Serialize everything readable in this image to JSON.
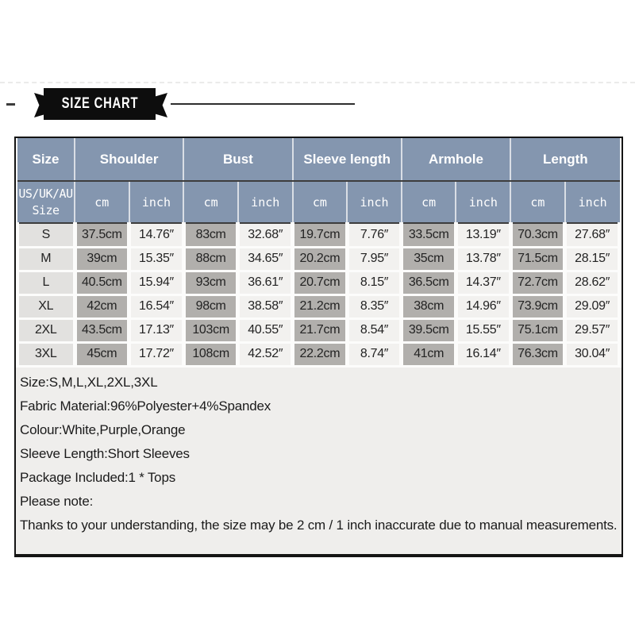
{
  "banner": {
    "title": "SIZE CHART"
  },
  "table": {
    "group_headers": [
      "Size",
      "Shoulder",
      "Bust",
      "Sleeve length",
      "Armhole",
      "Length"
    ],
    "subheader": {
      "size_line1": "US/UK/AU",
      "size_line2": "Size",
      "cm": "cm",
      "inch": "inch"
    },
    "rows": [
      {
        "size": "S",
        "values": [
          "37.5cm",
          "14.76″",
          "83cm",
          "32.68″",
          "19.7cm",
          "7.76″",
          "33.5cm",
          "13.19″",
          "70.3cm",
          "27.68″"
        ]
      },
      {
        "size": "M",
        "values": [
          "39cm",
          "15.35″",
          "88cm",
          "34.65″",
          "20.2cm",
          "7.95″",
          "35cm",
          "13.78″",
          "71.5cm",
          "28.15″"
        ]
      },
      {
        "size": "L",
        "values": [
          "40.5cm",
          "15.94″",
          "93cm",
          "36.61″",
          "20.7cm",
          "8.15″",
          "36.5cm",
          "14.37″",
          "72.7cm",
          "28.62″"
        ]
      },
      {
        "size": "XL",
        "values": [
          "42cm",
          "16.54″",
          "98cm",
          "38.58″",
          "21.2cm",
          "8.35″",
          "38cm",
          "14.96″",
          "73.9cm",
          "29.09″"
        ]
      },
      {
        "size": "2XL",
        "values": [
          "43.5cm",
          "17.13″",
          "103cm",
          "40.55″",
          "21.7cm",
          "8.54″",
          "39.5cm",
          "15.55″",
          "75.1cm",
          "29.57″"
        ]
      },
      {
        "size": "3XL",
        "values": [
          "45cm",
          "17.72″",
          "108cm",
          "42.52″",
          "22.2cm",
          "8.74″",
          "41cm",
          "16.14″",
          "76.3cm",
          "30.04″"
        ]
      }
    ]
  },
  "notes": {
    "lines": [
      "Size:S,M,L,XL,2XL,3XL",
      "Fabric Material:96%Polyester+4%Spandex",
      "Colour:White,Purple,Orange",
      "Sleeve Length:Short Sleeves",
      "Package Included:1 * Tops",
      "Please note:",
      "Thanks to your understanding, the size may be 2 cm / 1 inch inaccurate due to manual measurements."
    ]
  },
  "colors": {
    "header_bg": "#8496af",
    "cm_cell_bg": "#b1afac",
    "inch_cell_bg": "#f2f1ef",
    "size_cell_bg": "#e2e1df",
    "ribbon_bg": "#0d0d0d"
  }
}
